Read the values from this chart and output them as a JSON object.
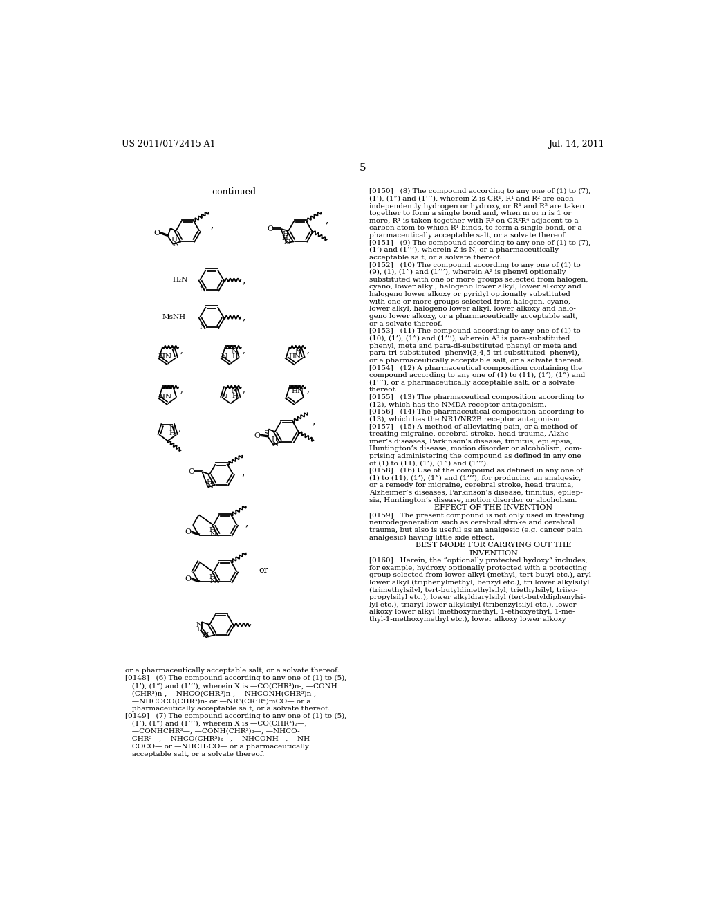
{
  "page_number": "5",
  "header_left": "US 2011/0172415 A1",
  "header_right": "Jul. 14, 2011",
  "bg_color": "#ffffff",
  "continued_label": "-continued",
  "left_text_block": [
    "or a pharmaceutically acceptable salt, or a solvate thereof.",
    "[0148]   (6) The compound according to any one of (1) to (5),",
    "   (1’), (1”) and (1’’’), wherein X is —CO(CHR³)n-, —CONH",
    "   (CHR³)n-, —NHCO(CHR³)n-, —NHCONH(CHR³)n-,",
    "   —NHCOCO(CHR³)n- or —NR⁵(CR²R⁴)mCO— or a",
    "   pharmaceutically acceptable salt, or a solvate thereof.",
    "[0149]   (7) The compound according to any one of (1) to (5),",
    "   (1’), (1”) and (1’’’), wherein X is —CO(CHR³)₂—,",
    "   —CONHCHR³—, —CONH(CHR³)₂—, —NHCO-",
    "   CHR³—, —NHCO(CHR³)₂—, —NHCONH—, —NH-",
    "   COCO— or —NHCH₂CO— or a pharmaceutically",
    "   acceptable salt, or a solvate thereof."
  ],
  "right_text_block": [
    {
      "indent": 0,
      "text": "[0150]   (8) The compound according to any one of (1) to (7),"
    },
    {
      "indent": 1,
      "text": "(1’), (1”) and (1’’’), wherein Z is CR¹, R¹ and R² are each"
    },
    {
      "indent": 1,
      "text": "independently hydrogen or hydroxy, or R¹ and R² are taken"
    },
    {
      "indent": 1,
      "text": "together to form a single bond and, when m or n is 1 or"
    },
    {
      "indent": 1,
      "text": "more, R¹ is taken together with R³ on CR²R⁴ adjacent to a"
    },
    {
      "indent": 1,
      "text": "carbon atom to which R¹ binds, to form a single bond, or a"
    },
    {
      "indent": 1,
      "text": "pharmaceutically acceptable salt, or a solvate thereof."
    },
    {
      "indent": 0,
      "text": "[0151]   (9) The compound according to any one of (1) to (7),"
    },
    {
      "indent": 1,
      "text": "(1’) and (1’’’), wherein Z is N, or a pharmaceutically"
    },
    {
      "indent": 1,
      "text": "acceptable salt, or a solvate thereof."
    },
    {
      "indent": 0,
      "text": "[0152]   (10) The compound according to any one of (1) to"
    },
    {
      "indent": 1,
      "text": "(9), (1), (1”) and (1’’’), wherein A² is phenyl optionally"
    },
    {
      "indent": 1,
      "text": "substituted with one or more groups selected from halogen,"
    },
    {
      "indent": 1,
      "text": "cyano, lower alkyl, halogeno lower alkyl, lower alkoxy and"
    },
    {
      "indent": 1,
      "text": "halogeno lower alkoxy or pyridyl optionally substituted"
    },
    {
      "indent": 1,
      "text": "with one or more groups selected from halogen, cyano,"
    },
    {
      "indent": 1,
      "text": "lower alkyl, halogeno lower alkyl, lower alkoxy and halo-"
    },
    {
      "indent": 1,
      "text": "geno lower alkoxy, or a pharmaceutically acceptable salt,"
    },
    {
      "indent": 1,
      "text": "or a solvate thereof."
    },
    {
      "indent": 0,
      "text": "[0153]   (11) The compound according to any one of (1) to"
    },
    {
      "indent": 1,
      "text": "(10), (1’), (1”) and (1’’’), wherein A² is para-substituted"
    },
    {
      "indent": 1,
      "text": "phenyl, meta and para-di-substituted phenyl or meta and"
    },
    {
      "indent": 1,
      "text": "para-tri-substituted  phenyl(3,4,5-tri-substituted  phenyl),"
    },
    {
      "indent": 1,
      "text": "or a pharmaceutically acceptable salt, or a solvate thereof."
    },
    {
      "indent": 0,
      "text": "[0154]   (12) A pharmaceutical composition containing the"
    },
    {
      "indent": 1,
      "text": "compound according to any one of (1) to (11), (1’), (1”) and"
    },
    {
      "indent": 1,
      "text": "(1’’’), or a pharmaceutically acceptable salt, or a solvate"
    },
    {
      "indent": 1,
      "text": "thereof."
    },
    {
      "indent": 0,
      "text": "[0155]   (13) The pharmaceutical composition according to"
    },
    {
      "indent": 1,
      "text": "(12), which has the NMDA receptor antagonism."
    },
    {
      "indent": 0,
      "text": "[0156]   (14) The pharmaceutical composition according to"
    },
    {
      "indent": 1,
      "text": "(13), which has the NR1/NR2B receptor antagonism."
    },
    {
      "indent": 0,
      "text": "[0157]   (15) A method of alleviating pain, or a method of"
    },
    {
      "indent": 1,
      "text": "treating migraine, cerebral stroke, head trauma, Alzhe-"
    },
    {
      "indent": 1,
      "text": "imer’s diseases, Parkinson’s disease, tinnitus, epilepsia,"
    },
    {
      "indent": 1,
      "text": "Huntington’s disease, motion disorder or alcoholism, com-"
    },
    {
      "indent": 1,
      "text": "prising administering the compound as defined in any one"
    },
    {
      "indent": 1,
      "text": "of (1) to (11), (1’), (1”) and (1’’’)."
    },
    {
      "indent": 0,
      "text": "[0158]   (16) Use of the compound as defined in any one of"
    },
    {
      "indent": 1,
      "text": "(1) to (11), (1’), (1”) and (1’’’), for producing an analgesic,"
    },
    {
      "indent": 1,
      "text": "or a remedy for migraine, cerebral stroke, head trauma,"
    },
    {
      "indent": 1,
      "text": "Alzheimer’s diseases, Parkinson’s disease, tinnitus, epilep-"
    },
    {
      "indent": 1,
      "text": "sia, Huntington’s disease, motion disorder or alcoholism."
    },
    {
      "indent": 2,
      "text": "EFFECT OF THE INVENTION"
    },
    {
      "indent": 0,
      "text": "[0159]   The present compound is not only used in treating"
    },
    {
      "indent": 1,
      "text": "neurodegeneration such as cerebral stroke and cerebral"
    },
    {
      "indent": 1,
      "text": "trauma, but also is useful as an analgesic (e.g. cancer pain"
    },
    {
      "indent": 1,
      "text": "analgesic) having little side effect."
    },
    {
      "indent": 2,
      "text": "BEST MODE FOR CARRYING OUT THE"
    },
    {
      "indent": 2,
      "text": "INVENTION"
    },
    {
      "indent": 0,
      "text": "[0160]   Herein, the “optionally protected hydoxy” includes,"
    },
    {
      "indent": 1,
      "text": "for example, hydroxy optionally protected with a protecting"
    },
    {
      "indent": 1,
      "text": "group selected from lower alkyl (methyl, tert-butyl etc.), aryl"
    },
    {
      "indent": 1,
      "text": "lower alkyl (triphenylmethyl, benzyl etc.), tri lower alkylsilyl"
    },
    {
      "indent": 1,
      "text": "(trimethylsilyl, tert-butyldimethylsilyl, triethylsilyl, triiso-"
    },
    {
      "indent": 1,
      "text": "propylsilyl etc.), lower alkyldiarylsilyl (tert-butyldiphenylsi-"
    },
    {
      "indent": 1,
      "text": "lyl etc.), triaryl lower alkylsilyl (tribenzylsilyl etc.), lower"
    },
    {
      "indent": 1,
      "text": "alkoxy lower alkyl (methoxymethyl, 1-ethoxyethyl, 1-me-"
    },
    {
      "indent": 1,
      "text": "thyl-1-methoxymethyl etc.), lower alkoxy lower alkoxy"
    }
  ]
}
